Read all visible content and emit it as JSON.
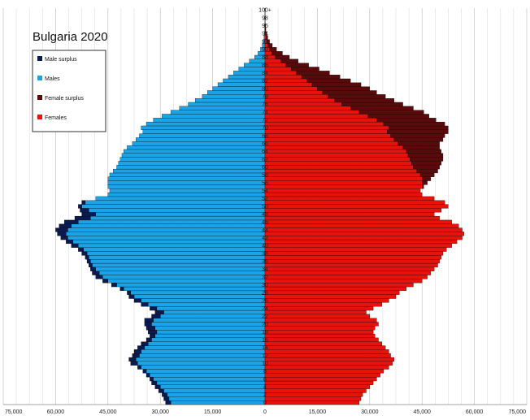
{
  "chart_data": {
    "type": "bar",
    "orientation": "horizontal-population-pyramid",
    "title": "Bulgaria 2020",
    "colors": {
      "male_surplus": "#0b1a4f",
      "males": "#1aa3e6",
      "female_surplus": "#5a0a0a",
      "females": "#e8120c",
      "grid": "#cccccc",
      "bar_outline": "#000000"
    },
    "legend": {
      "placement": "top-left",
      "entries": [
        {
          "key": "male_surplus",
          "label": "Male surplus"
        },
        {
          "key": "males",
          "label": "Males"
        },
        {
          "key": "female_surplus",
          "label": "Female surplus"
        },
        {
          "key": "females",
          "label": "Females"
        }
      ]
    },
    "x_ticks": [
      "75,000",
      "60,000",
      "45,000",
      "30,000",
      "15,000",
      "0",
      "15,000",
      "30,000",
      "45,000",
      "60,000",
      "75,000"
    ],
    "xlim": [
      -75000,
      75000
    ],
    "age_tick_labels": [
      "0",
      "2",
      "4",
      "6",
      "8",
      "10",
      "12",
      "14",
      "16",
      "18",
      "20",
      "22",
      "24",
      "26",
      "28",
      "30",
      "32",
      "34",
      "36",
      "38",
      "40",
      "42",
      "44",
      "46",
      "48",
      "50",
      "52",
      "54",
      "56",
      "58",
      "60",
      "62",
      "64",
      "66",
      "68",
      "70",
      "72",
      "74",
      "76",
      "78",
      "80",
      "82",
      "84",
      "86",
      "88",
      "90",
      "92",
      "94",
      "96",
      "98",
      "100+"
    ],
    "ages": [
      0,
      1,
      2,
      3,
      4,
      5,
      6,
      7,
      8,
      9,
      10,
      11,
      12,
      13,
      14,
      15,
      16,
      17,
      18,
      19,
      20,
      21,
      22,
      23,
      24,
      25,
      26,
      27,
      28,
      29,
      30,
      31,
      32,
      33,
      34,
      35,
      36,
      37,
      38,
      39,
      40,
      41,
      42,
      43,
      44,
      45,
      46,
      47,
      48,
      49,
      50,
      51,
      52,
      53,
      54,
      55,
      56,
      57,
      58,
      59,
      60,
      61,
      62,
      63,
      64,
      65,
      66,
      67,
      68,
      69,
      70,
      71,
      72,
      73,
      74,
      75,
      76,
      77,
      78,
      79,
      80,
      81,
      82,
      83,
      84,
      85,
      86,
      87,
      88,
      89,
      90,
      91,
      92,
      93,
      94,
      95,
      96,
      97,
      98,
      99,
      100
    ],
    "males": [
      28500,
      29000,
      29500,
      30500,
      31500,
      32500,
      33000,
      34000,
      35000,
      36500,
      38500,
      39000,
      38000,
      37500,
      36500,
      35500,
      34000,
      33000,
      33500,
      34000,
      34500,
      34500,
      32500,
      31500,
      33000,
      35500,
      37500,
      39000,
      39500,
      41500,
      44000,
      46500,
      48500,
      49500,
      50000,
      50500,
      51000,
      51500,
      52500,
      53500,
      55500,
      57000,
      58500,
      59500,
      60000,
      59000,
      57500,
      54500,
      52500,
      53000,
      53500,
      52500,
      48500,
      45000,
      44500,
      45000,
      45000,
      45000,
      44500,
      43500,
      42500,
      42000,
      41500,
      41000,
      40500,
      39500,
      38000,
      37000,
      36000,
      35000,
      35500,
      34000,
      32000,
      29500,
      27000,
      24500,
      22000,
      20000,
      18000,
      16500,
      15000,
      13500,
      12000,
      10500,
      9000,
      7500,
      6000,
      4500,
      3000,
      2000,
      1300,
      800,
      500,
      300,
      150,
      100,
      60,
      30,
      15,
      8,
      6
    ],
    "females": [
      27000,
      27500,
      28000,
      29000,
      30000,
      31000,
      32000,
      33000,
      34000,
      35500,
      36500,
      37000,
      36000,
      35500,
      34500,
      33500,
      32500,
      31500,
      31000,
      31500,
      32500,
      32000,
      30000,
      29000,
      31000,
      33500,
      35500,
      37500,
      38500,
      40500,
      42500,
      45000,
      46500,
      47500,
      48500,
      49500,
      50000,
      50500,
      51000,
      52000,
      53500,
      55000,
      56500,
      57000,
      56500,
      55500,
      53500,
      50000,
      48500,
      50500,
      52500,
      51500,
      48500,
      45000,
      44500,
      45500,
      46500,
      47500,
      48500,
      49500,
      50000,
      50500,
      51000,
      51000,
      50500,
      50000,
      50000,
      51000,
      51500,
      52500,
      52500,
      51500,
      49000,
      47000,
      45500,
      42500,
      39500,
      37000,
      34500,
      32000,
      30000,
      27500,
      24500,
      21500,
      18500,
      15500,
      12500,
      9500,
      7000,
      5000,
      3300,
      2100,
      1300,
      800,
      450,
      250,
      150,
      80,
      40,
      20,
      14
    ]
  }
}
